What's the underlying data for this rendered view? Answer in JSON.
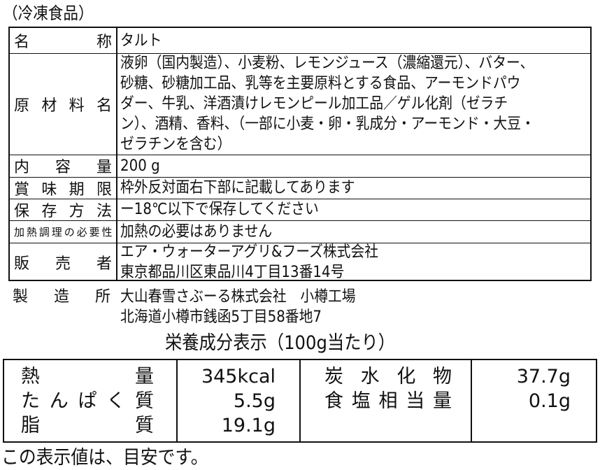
{
  "category": "（冷凍食品）",
  "label": {
    "rows": [
      {
        "label": "名称",
        "lines": [
          "タルト"
        ]
      },
      {
        "label": "原材料名",
        "lines": [
          "液卵（国内製造）、小麦粉、レモンジュース（濃縮還元）、バター、",
          "砂糖、砂糖加工品、乳等を主要原料とする食品、アーモンドパウ",
          "ダー、牛乳、洋酒漬けレモンピール加工品／ゲル化剤（ゼラチ",
          "ン）、酒精、香料、（一部に小麦・卵・乳成分・アーモンド・大豆・",
          "ゼラチンを含む）"
        ]
      },
      {
        "label": "内容量",
        "lines": [
          "200 g"
        ]
      },
      {
        "label": "賞味期限",
        "lines": [
          "枠外反対面右下部に記載してあります"
        ]
      },
      {
        "label": "保存方法",
        "lines": [
          "ー18℃以下で保存してください"
        ]
      },
      {
        "label": "加熱調理の必要性",
        "lines": [
          "加熱の必要はありません"
        ]
      },
      {
        "label": "販売者",
        "lines": [
          "エア・ウォーターアグリ&フーズ株式会社",
          "東京都品川区東品川4丁目13番14号"
        ]
      }
    ]
  },
  "manufacturer": {
    "label": "製造所",
    "lines": [
      "大山春雪さぶーる株式会社　小樽工場",
      "北海道小樽市銭函5丁目58番地7"
    ]
  },
  "nutrition": {
    "title": "栄養成分表示（100g当たり）",
    "left": [
      {
        "name": "熱量",
        "value": "345kcal"
      },
      {
        "name": "たんぱく質",
        "value": "5.5g"
      },
      {
        "name": "脂質",
        "value": "19.1g"
      }
    ],
    "right": [
      {
        "name": "炭水化物",
        "value": "37.7g"
      },
      {
        "name": "食塩相当量",
        "value": "0.1g"
      }
    ]
  },
  "footnote": "この表示値は、目安です。"
}
